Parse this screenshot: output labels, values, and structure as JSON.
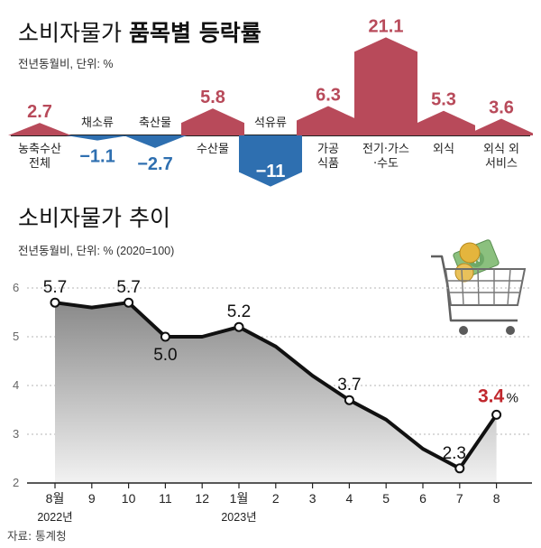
{
  "bar_section": {
    "title_plain": "소비자물가",
    "title_bold": "품목별 등락률",
    "subtitle": "전년동월비, 단위: %"
  },
  "line_section": {
    "title": "소비자물가 추이",
    "subtitle": "전년동월비, 단위: % (2020=100)",
    "year_labels": [
      "2022년",
      "2023년"
    ],
    "last_unit": "%"
  },
  "source": "자료: 통계청",
  "colors": {
    "positive": "#b84a5a",
    "negative": "#2e6fb0",
    "line": "#111111",
    "area_top": "#8a8a8a",
    "area_bottom": "#f2f2f2"
  },
  "chart_data": [
    {
      "type": "bar",
      "title": "소비자물가 품목별 등락률",
      "subtitle": "전년동월비, 단위: %",
      "categories": [
        {
          "lines": [
            "농축수산",
            "전체"
          ]
        },
        {
          "lines": [
            "채소류"
          ]
        },
        {
          "lines": [
            "축산물"
          ]
        },
        {
          "lines": [
            "수산물"
          ]
        },
        {
          "lines": [
            "석유류"
          ]
        },
        {
          "lines": [
            "가공",
            "식품"
          ]
        },
        {
          "lines": [
            "전기·가스",
            "·수도"
          ]
        },
        {
          "lines": [
            "외식"
          ]
        },
        {
          "lines": [
            "외식 외",
            "서비스"
          ]
        }
      ],
      "values": [
        2.7,
        -1.1,
        -2.7,
        5.8,
        -11,
        6.3,
        21.1,
        5.3,
        3.6
      ],
      "value_labels": [
        "2.7",
        "−1.1",
        "−2.7",
        "5.8",
        "−11",
        "6.3",
        "21.1",
        "5.3",
        "3.6"
      ]
    },
    {
      "type": "line",
      "title": "소비자물가 추이",
      "subtitle": "전년동월비, 단위: % (2020=100)",
      "x": [
        "8월",
        "9",
        "10",
        "11",
        "12",
        "1월",
        "2",
        "3",
        "4",
        "5",
        "6",
        "7",
        "8"
      ],
      "y": [
        5.7,
        5.6,
        5.7,
        5.0,
        5.0,
        5.2,
        4.8,
        4.2,
        3.7,
        3.3,
        2.7,
        2.3,
        3.4
      ],
      "ylim": [
        2,
        6
      ],
      "yticks": [
        2,
        3,
        4,
        5,
        6
      ],
      "grid": true,
      "point_labels": [
        {
          "index": 0,
          "text": "5.7"
        },
        {
          "index": 2,
          "text": "5.7"
        },
        {
          "index": 3,
          "text": "5.0"
        },
        {
          "index": 5,
          "text": "5.2"
        },
        {
          "index": 8,
          "text": "3.7"
        },
        {
          "index": 11,
          "text": "2.3"
        },
        {
          "index": 12,
          "text": "3.4"
        }
      ]
    }
  ]
}
